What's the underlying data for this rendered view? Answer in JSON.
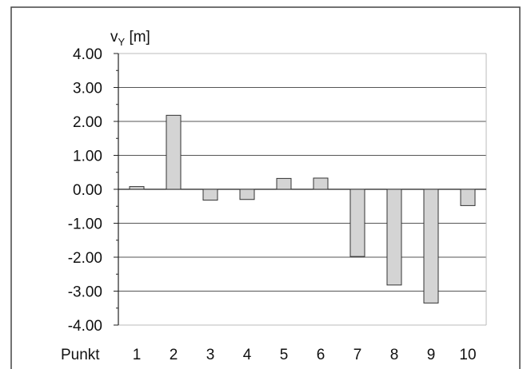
{
  "chart_data": {
    "type": "bar",
    "ylabel_main": "v",
    "ylabel_sub": "Y",
    "ylabel_unit": " [m]",
    "xlabel": "Punkt",
    "categories": [
      "1",
      "2",
      "3",
      "4",
      "5",
      "6",
      "7",
      "8",
      "9",
      "10"
    ],
    "values": [
      0.08,
      2.18,
      -0.32,
      -0.3,
      0.32,
      0.33,
      -1.98,
      -2.82,
      -3.35,
      -0.48
    ],
    "ylim": [
      -4,
      4
    ],
    "yticks": [
      4,
      3,
      2,
      1,
      0,
      -1,
      -2,
      -3,
      -4
    ],
    "ytick_labels": [
      "4.00",
      "3.00",
      "2.00",
      "1.00",
      "0.00",
      "-1.00",
      "-2.00",
      "-3.00",
      "-4.00"
    ],
    "grid": true,
    "bar_color": "#d4d4d4",
    "bar_edge_color": "#333333",
    "grid_color": "#555555"
  }
}
